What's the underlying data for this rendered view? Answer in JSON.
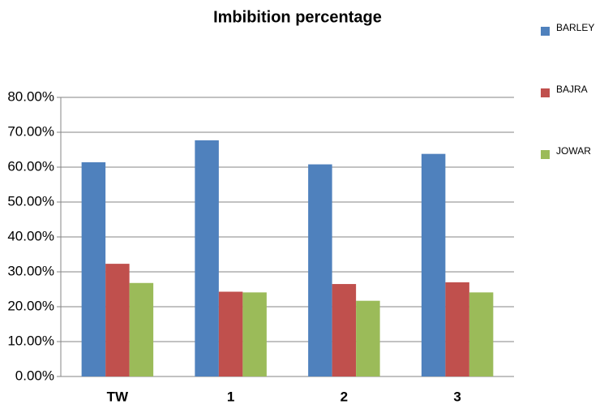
{
  "chart_data": {
    "type": "bar",
    "title": "Imbibition percentage",
    "categories": [
      "TW",
      "1",
      "2",
      "3"
    ],
    "series": [
      {
        "name": "BARLEY",
        "color": "#4f81bd",
        "values": [
          61.4,
          67.7,
          60.8,
          63.8
        ]
      },
      {
        "name": "BAJRA",
        "color": "#c0504d",
        "values": [
          32.3,
          24.3,
          26.5,
          27.0
        ]
      },
      {
        "name": "JOWAR",
        "color": "#9bbb59",
        "values": [
          26.8,
          24.1,
          21.7,
          24.1
        ]
      }
    ],
    "ylim": [
      0,
      80
    ],
    "yticks": [
      {
        "value": 0,
        "label": "0.00%"
      },
      {
        "value": 10,
        "label": "10.00%"
      },
      {
        "value": 20,
        "label": "20.00%"
      },
      {
        "value": 30,
        "label": "30.00%"
      },
      {
        "value": 40,
        "label": "40.00%"
      },
      {
        "value": 50,
        "label": "50.00%"
      },
      {
        "value": 60,
        "label": "60.00%"
      },
      {
        "value": 70,
        "label": "70.00%"
      },
      {
        "value": 80,
        "label": "80.00%"
      }
    ],
    "grid": true,
    "legend": "right"
  }
}
